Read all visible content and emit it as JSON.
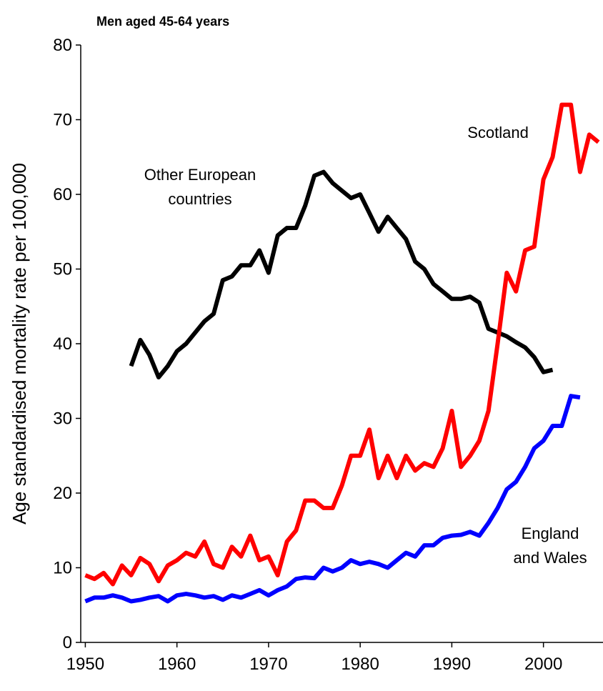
{
  "chart_data": {
    "type": "line",
    "title": "Men aged 45-64 years",
    "y_label": "Age standardised mortality rate per 100,000",
    "x": [
      1950,
      1951,
      1952,
      1953,
      1954,
      1955,
      1956,
      1957,
      1958,
      1959,
      1960,
      1961,
      1962,
      1963,
      1964,
      1965,
      1966,
      1967,
      1968,
      1969,
      1970,
      1971,
      1972,
      1973,
      1974,
      1975,
      1976,
      1977,
      1978,
      1979,
      1980,
      1981,
      1982,
      1983,
      1984,
      1985,
      1986,
      1987,
      1988,
      1989,
      1990,
      1991,
      1992,
      1993,
      1994,
      1995,
      1996,
      1997,
      1998,
      1999,
      2000,
      2001,
      2002,
      2003,
      2004,
      2005,
      2006
    ],
    "series": [
      {
        "name": "Other European countries",
        "color": "#000000",
        "values": [
          null,
          null,
          null,
          null,
          null,
          37,
          40.5,
          38.5,
          35.5,
          37,
          39,
          40,
          41.5,
          43,
          44,
          48.5,
          49,
          50.5,
          50.5,
          52.5,
          49.5,
          54.5,
          55.5,
          55.5,
          58.5,
          62.5,
          63,
          61.5,
          60.5,
          59.5,
          60,
          57.5,
          55,
          57,
          55.5,
          54,
          51,
          50,
          48,
          47,
          46,
          46,
          46.3,
          45.5,
          42,
          41.5,
          41,
          40.2,
          39.5,
          38.2,
          36.2,
          36.5,
          null,
          null,
          null,
          null,
          null
        ]
      },
      {
        "name": "Scotland",
        "color": "#ff0000",
        "values": [
          9,
          8.5,
          9.3,
          7.8,
          10.3,
          9,
          11.3,
          10.5,
          8.2,
          10.3,
          11,
          12,
          11.5,
          13.5,
          10.5,
          10,
          12.8,
          11.5,
          14.3,
          11,
          11.5,
          9,
          13.5,
          15,
          19,
          19,
          18,
          18,
          21,
          25,
          25,
          28.5,
          22,
          25,
          22,
          25,
          23,
          24,
          23.5,
          26,
          31,
          23.5,
          25,
          27,
          31,
          40,
          49.5,
          47,
          52.5,
          53,
          62,
          65,
          72,
          72,
          63,
          68,
          67
        ]
      },
      {
        "name": "England and Wales",
        "color": "#0000ff",
        "values": [
          5.5,
          6,
          6,
          6.3,
          6,
          5.5,
          5.7,
          6,
          6.2,
          5.5,
          6.3,
          6.5,
          6.3,
          6,
          6.2,
          5.7,
          6.3,
          6,
          6.5,
          7,
          6.3,
          7,
          7.5,
          8.5,
          8.7,
          8.6,
          10,
          9.5,
          10,
          11,
          10.5,
          10.8,
          10.5,
          10,
          11,
          12,
          11.5,
          13,
          13,
          14,
          14.3,
          14.4,
          14.8,
          14.3,
          16,
          18,
          20.5,
          21.5,
          23.5,
          26,
          27,
          29,
          29,
          33,
          32.8,
          null,
          null
        ]
      }
    ],
    "xlim": [
      1949.5,
      2006.5
    ],
    "xticks": [
      1950,
      1960,
      1970,
      1980,
      1990,
      2000
    ],
    "ylim": [
      0,
      80
    ],
    "yticks": [
      0,
      10,
      20,
      30,
      40,
      50,
      60,
      70,
      80
    ],
    "grid": false
  }
}
